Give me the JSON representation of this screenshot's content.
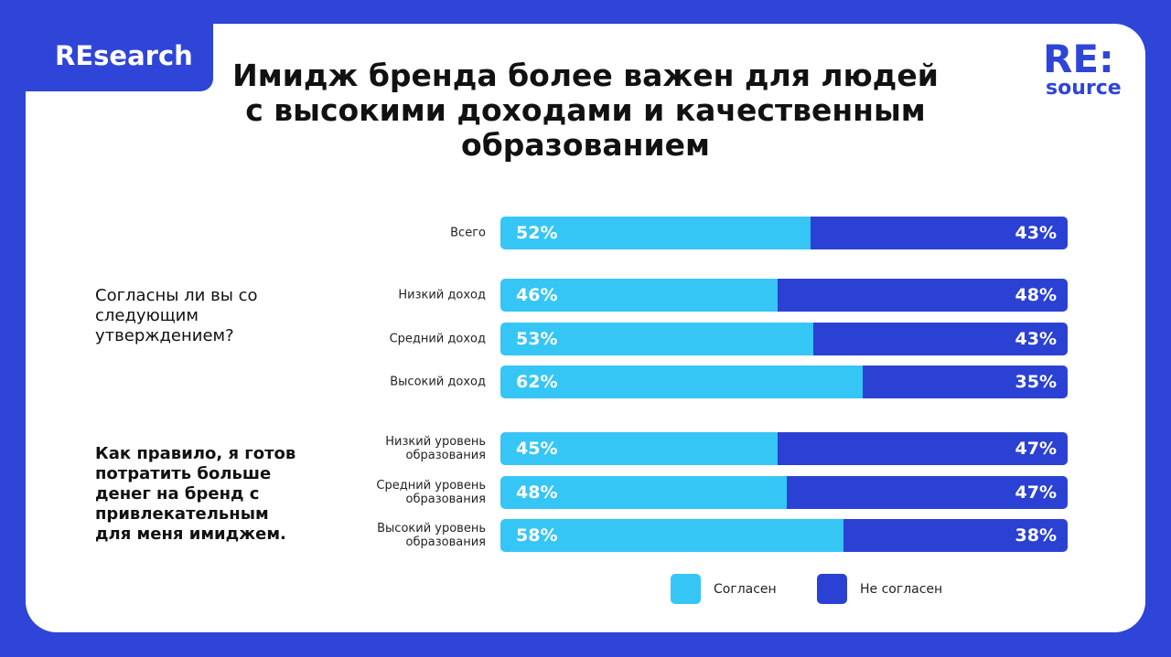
{
  "brand_tag": "REsearch",
  "logo": {
    "line1": "RE:",
    "line2": "source"
  },
  "title": "Имидж бренда более важен для людей с высокими доходами и качественным образованием",
  "question1": "Согласны ли вы со следующим утверждением?",
  "question2": "Как правило, я готов потратить больше денег на бренд с привлекательным для меня имиджем.",
  "colors": {
    "agree": "#36c6f5",
    "disagree": "#2b41d4",
    "background": "#2f45d8"
  },
  "chart_data": {
    "type": "bar",
    "stacked": true,
    "orientation": "horizontal",
    "categories": [
      "Всего",
      "Низкий доход",
      "Средний доход",
      "Высокий доход",
      "Низкий уровень образования",
      "Средний уровень образования",
      "Высокий уровень образования"
    ],
    "series": [
      {
        "name": "Согласен",
        "values": [
          52,
          46,
          53,
          62,
          45,
          48,
          58
        ],
        "labels": [
          "52%",
          "46%",
          "53%",
          "62%",
          "45%",
          "48%",
          "58%"
        ]
      },
      {
        "name": "Не согласен",
        "values": [
          43,
          48,
          43,
          35,
          47,
          47,
          38
        ],
        "labels": [
          "43%",
          "48%",
          "43%",
          "35%",
          "47%",
          "47%",
          "38%"
        ]
      }
    ],
    "legend": "bottom"
  }
}
